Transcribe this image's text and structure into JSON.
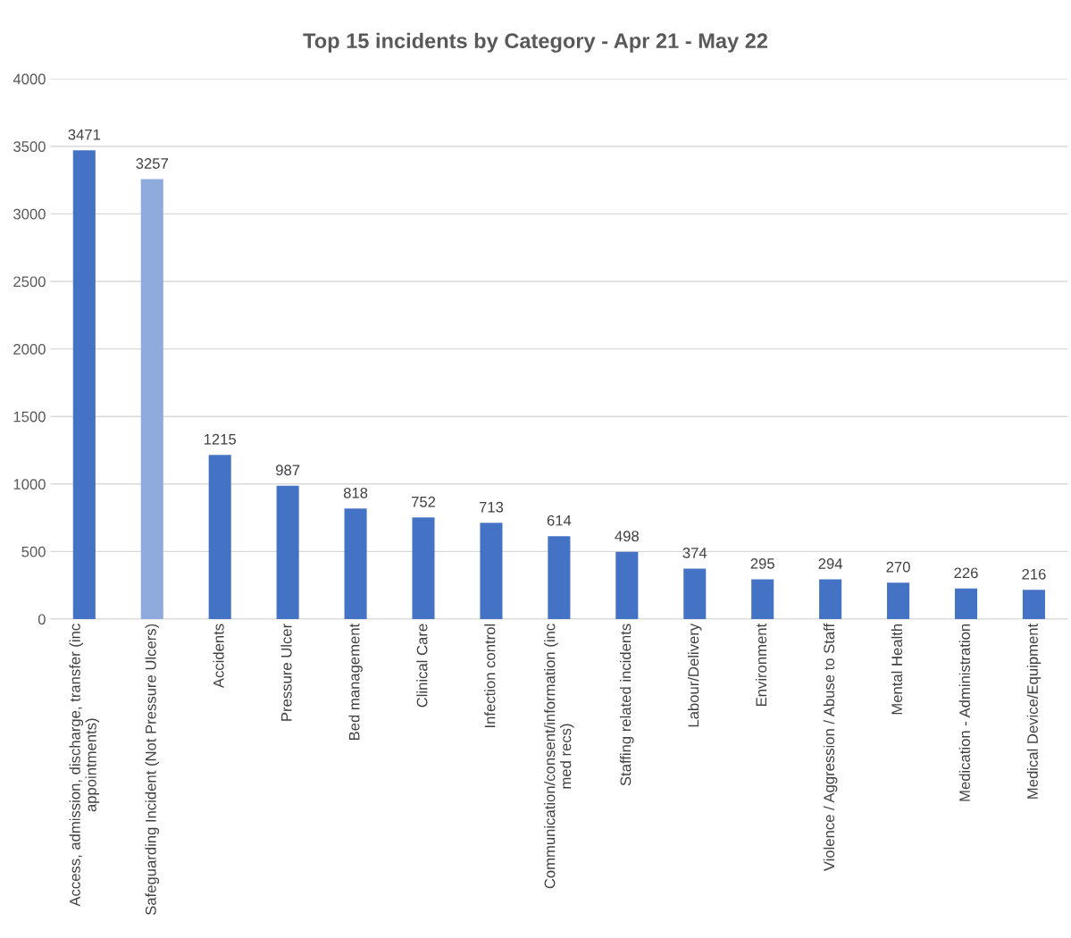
{
  "chart_data": {
    "type": "bar",
    "title": "Top 15 incidents by Category - Apr 21 - May 22",
    "categories": [
      "Access, admission, discharge, transfer (inc\nappointments)",
      "Safeguarding Incident (Not Pressure Ulcers)",
      "Accidents",
      "Pressure Ulcer",
      "Bed management",
      "Clinical Care",
      "Infection control",
      "Communication/consent/information (inc\nmed recs)",
      "Staffing related incidents",
      "Labour/Delivery",
      "Environment",
      "Violence / Aggression / Abuse to Staff",
      "Mental Health",
      "Medication - Administration",
      "Medical Device/Equipment"
    ],
    "values": [
      3471,
      3257,
      1215,
      987,
      818,
      752,
      713,
      614,
      498,
      374,
      295,
      294,
      270,
      226,
      216
    ],
    "colors": [
      "#4472c4",
      "#8faadc",
      "#4472c4",
      "#4472c4",
      "#4472c4",
      "#4472c4",
      "#4472c4",
      "#4472c4",
      "#4472c4",
      "#4472c4",
      "#4472c4",
      "#4472c4",
      "#4472c4",
      "#4472c4",
      "#4472c4"
    ],
    "ylim": [
      0,
      4000
    ],
    "yticks": [
      0,
      500,
      1000,
      1500,
      2000,
      2500,
      3000,
      3500,
      4000
    ],
    "grid": "y",
    "data_labels": true,
    "legend": false
  }
}
